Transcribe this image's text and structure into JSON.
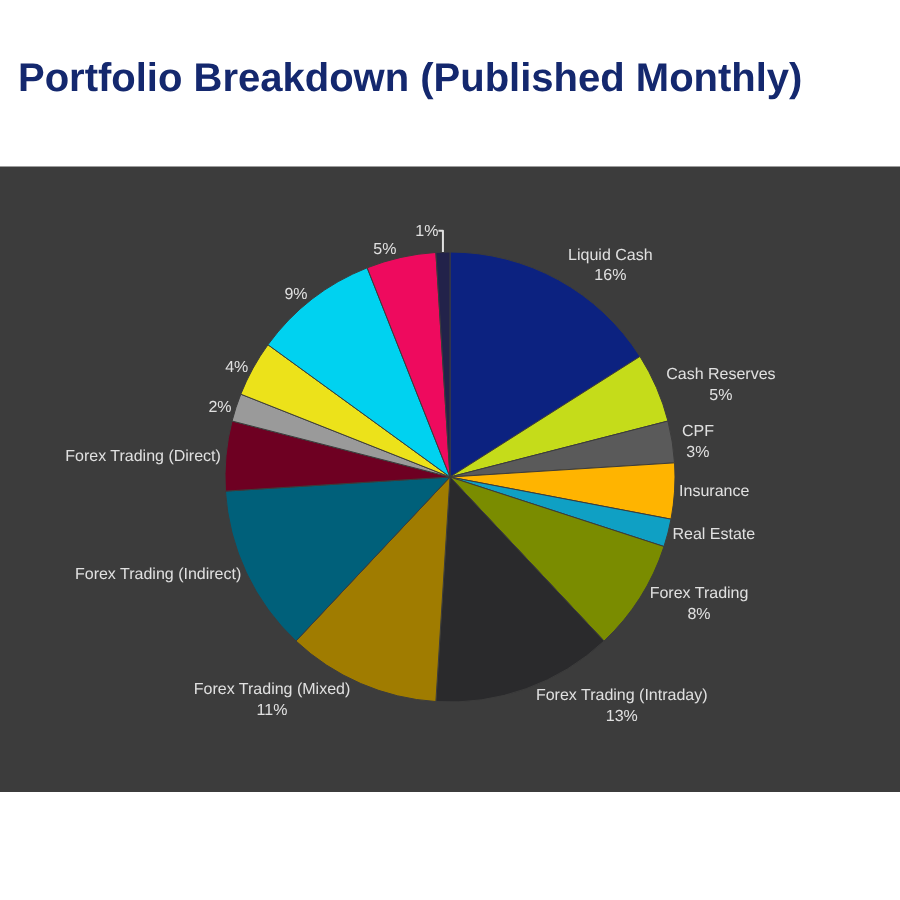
{
  "chart_data": {
    "type": "pie",
    "title": "Portfolio Breakdown (Published Monthly)",
    "categories": [
      "Liquid Cash",
      "Cash Reserves",
      "CPF",
      "Insurance",
      "Real Estate",
      "Forex Trading",
      "Forex Trading (Intraday)",
      "Forex Trading (Mixed)",
      "Forex Trading (Indirect)",
      "Forex Trading (Direct)",
      null,
      null,
      null,
      null,
      null
    ],
    "values": [
      16,
      5,
      3,
      4,
      2,
      8,
      13,
      11,
      12,
      5,
      2,
      4,
      9,
      5,
      1
    ],
    "value_labels": [
      "16%",
      "5%",
      "3%",
      null,
      null,
      "8%",
      "13%",
      "11%",
      null,
      null,
      "2%",
      "4%",
      "9%",
      "5%",
      "1%"
    ],
    "colors": [
      "#0c2280",
      "#c5dc1a",
      "#5a5a5a",
      "#ffb400",
      "#0fa0c4",
      "#7a8c00",
      "#2a2a2c",
      "#a07c00",
      "#00607a",
      "#6e0022",
      "#9a9a9a",
      "#ece21a",
      "#00d2f0",
      "#ee0a5e",
      "#22224a"
    ]
  }
}
